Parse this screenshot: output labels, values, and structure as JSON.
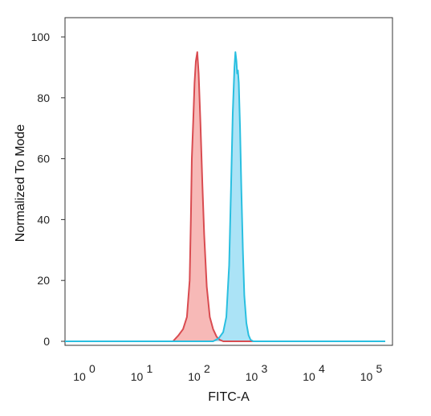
{
  "chart_data": {
    "type": "area",
    "title": "",
    "xlabel": "FITC-A",
    "ylabel": "Normalized To Mode",
    "x_scale": "log",
    "xlim": [
      0.5,
      200000
    ],
    "ylim": [
      0,
      100
    ],
    "grid": false,
    "y_ticks": [
      {
        "value": 0,
        "label": "0"
      },
      {
        "value": 20,
        "label": "20"
      },
      {
        "value": 40,
        "label": "40"
      },
      {
        "value": 60,
        "label": "60"
      },
      {
        "value": 80,
        "label": "80"
      },
      {
        "value": 100,
        "label": "100"
      }
    ],
    "x_ticks": [
      {
        "value": 1,
        "base": "10",
        "exp": "0"
      },
      {
        "value": 10,
        "base": "10",
        "exp": "1"
      },
      {
        "value": 100,
        "base": "10",
        "exp": "2"
      },
      {
        "value": 1000,
        "base": "10",
        "exp": "3"
      },
      {
        "value": 10000,
        "base": "10",
        "exp": "4"
      },
      {
        "value": 100000,
        "base": "10",
        "exp": "5"
      }
    ],
    "series": [
      {
        "color": "#d94b50",
        "fill": "#f4a29f",
        "points": [
          [
            0.5,
            0
          ],
          [
            40,
            0
          ],
          [
            50,
            2
          ],
          [
            60,
            4
          ],
          [
            70,
            8
          ],
          [
            78,
            20
          ],
          [
            82,
            40
          ],
          [
            85,
            60
          ],
          [
            90,
            72
          ],
          [
            95,
            85
          ],
          [
            100,
            92
          ],
          [
            106,
            95
          ],
          [
            112,
            88
          ],
          [
            120,
            72
          ],
          [
            130,
            52
          ],
          [
            140,
            35
          ],
          [
            155,
            18
          ],
          [
            175,
            8
          ],
          [
            200,
            4
          ],
          [
            230,
            1.5
          ],
          [
            260,
            0.5
          ],
          [
            300,
            0
          ],
          [
            200000,
            0
          ]
        ]
      },
      {
        "color": "#29bfe0",
        "fill": "#8fd9f3",
        "points": [
          [
            0.5,
            0
          ],
          [
            200,
            0
          ],
          [
            250,
            1
          ],
          [
            300,
            3
          ],
          [
            340,
            8
          ],
          [
            380,
            25
          ],
          [
            410,
            50
          ],
          [
            440,
            75
          ],
          [
            470,
            90
          ],
          [
            490,
            95
          ],
          [
            510,
            92
          ],
          [
            525,
            88
          ],
          [
            540,
            89
          ],
          [
            560,
            85
          ],
          [
            590,
            70
          ],
          [
            620,
            50
          ],
          [
            660,
            30
          ],
          [
            700,
            15
          ],
          [
            760,
            6
          ],
          [
            830,
            2
          ],
          [
            900,
            0.5
          ],
          [
            1000,
            0
          ],
          [
            200000,
            0
          ]
        ]
      }
    ]
  }
}
